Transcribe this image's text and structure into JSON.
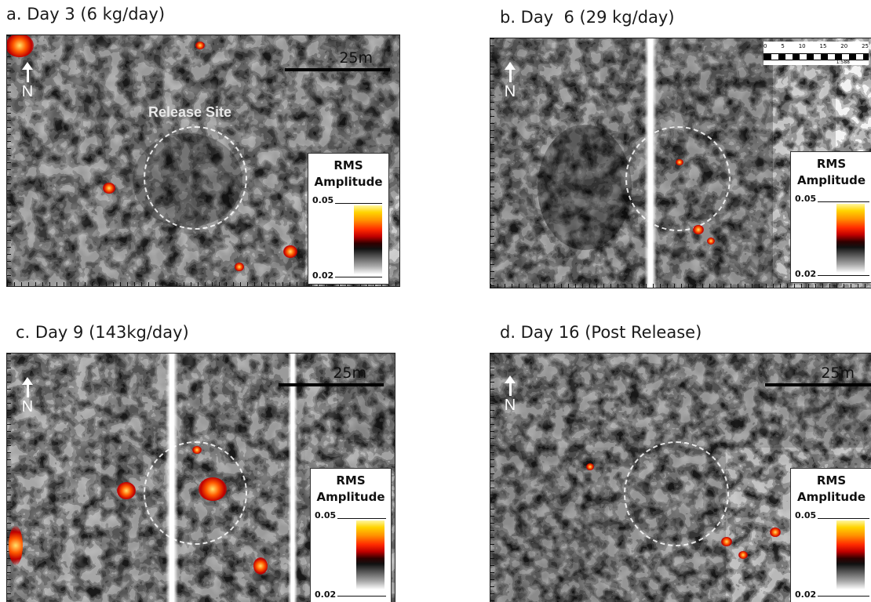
{
  "panels": [
    {
      "caption": "a. Day 3 (6 kg/day)",
      "scale_label": "25m",
      "release_label": "Release Site"
    },
    {
      "caption": "b. Day  6 (29 kg/day)",
      "scale_label": "",
      "mini_scale_numbers": [
        "0",
        "5",
        "10",
        "15",
        "20",
        "25"
      ],
      "mini_scale_ratio": "1:588"
    },
    {
      "caption": "c. Day 9 (143kg/day)",
      "scale_label": "25m"
    },
    {
      "caption": "d. Day 16 (Post Release)",
      "scale_label": "25m"
    }
  ],
  "north_label": "N",
  "legend": {
    "title_line1": "RMS",
    "title_line2": "Amplitude",
    "max_value": "0.05",
    "min_value": "0.02"
  },
  "colors": {
    "hot_core": "#ffe36a",
    "hot_edge": "#c00000",
    "background_gray": "#7a7a7a"
  }
}
